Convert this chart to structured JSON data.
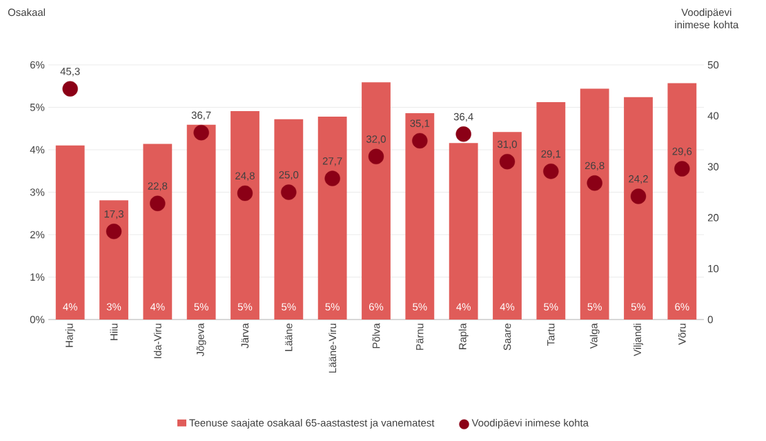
{
  "chart_data": {
    "type": "bar",
    "ylabel": "Osakaal",
    "y2label": "Voodipäevi inimese kohta",
    "categories": [
      "Harju",
      "Hiiu",
      "Ida-Viru",
      "Jõgeva",
      "Järva",
      "Lääne",
      "Lääne-Viru",
      "Põlva",
      "Pärnu",
      "Rapla",
      "Saare",
      "Tartu",
      "Valga",
      "Viljandi",
      "Võru"
    ],
    "series": [
      {
        "name": "Teenuse saajate osakaal 65-aastastest ja vanematest",
        "color": "#e05c59",
        "values": [
          4.1,
          2.81,
          4.14,
          4.59,
          4.91,
          4.72,
          4.78,
          5.59,
          4.86,
          4.16,
          4.42,
          5.12,
          5.44,
          5.24,
          5.57
        ],
        "value_labels": [
          "4%",
          "3%",
          "4%",
          "5%",
          "5%",
          "5%",
          "5%",
          "6%",
          "5%",
          "4%",
          "4%",
          "5%",
          "5%",
          "5%",
          "6%"
        ]
      },
      {
        "name": "Voodipäevi inimese kohta",
        "type": "scatter",
        "axis": "y2",
        "color": "#8b0016",
        "values": [
          45.3,
          17.3,
          22.8,
          36.7,
          24.8,
          25.0,
          27.7,
          32.0,
          35.1,
          36.4,
          31.0,
          29.1,
          26.8,
          24.2,
          29.6
        ],
        "value_labels": [
          "45,3",
          "17,3",
          "22,8",
          "36,7",
          "24,8",
          "25,0",
          "27,7",
          "32,0",
          "35,1",
          "36,4",
          "31,0",
          "29,1",
          "26,8",
          "24,2",
          "29,6"
        ]
      }
    ],
    "ylim": [
      0,
      6
    ],
    "yticks": [
      {
        "value": 0,
        "label": "0%"
      },
      {
        "value": 1,
        "label": "1%"
      },
      {
        "value": 2,
        "label": "2%"
      },
      {
        "value": 3,
        "label": "3%"
      },
      {
        "value": 4,
        "label": "4%"
      },
      {
        "value": 5,
        "label": "5%"
      },
      {
        "value": 6,
        "label": "6%"
      }
    ],
    "y2lim": [
      0,
      50
    ],
    "y2ticks": [
      0,
      10,
      20,
      30,
      40,
      50
    ],
    "marker": "circle",
    "grid": "y",
    "legend": "bottom"
  }
}
